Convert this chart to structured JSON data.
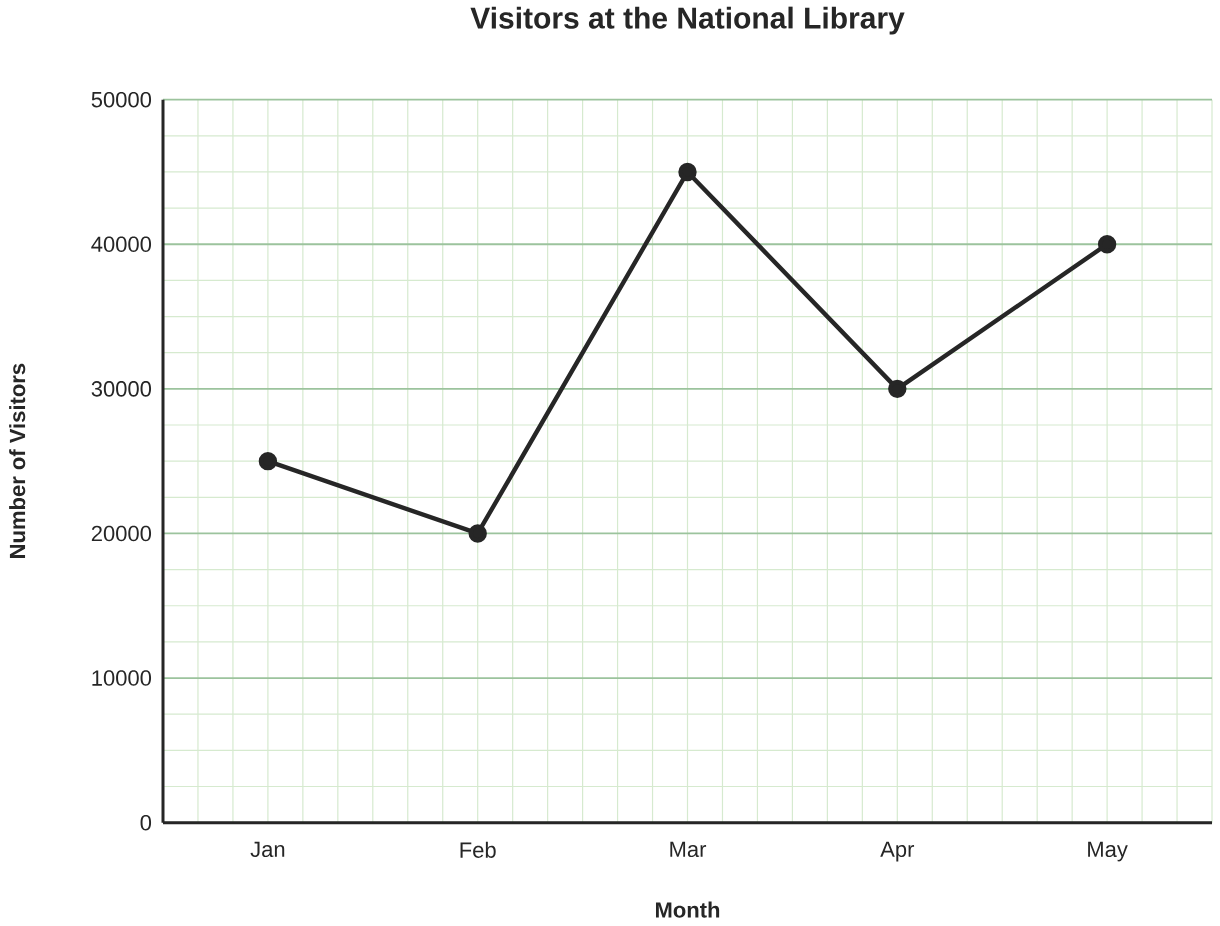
{
  "chart_data": {
    "type": "line",
    "title": "Visitors at the National Library",
    "xlabel": "Month",
    "ylabel": "Number of Visitors",
    "categories": [
      "Jan",
      "Feb",
      "Mar",
      "Apr",
      "May"
    ],
    "values": [
      25000,
      20000,
      45000,
      30000,
      40000
    ],
    "color": "#262626",
    "marker": "circle",
    "line_style": "solid",
    "ylim": [
      0,
      50000
    ],
    "yticks": [
      0,
      10000,
      20000,
      30000,
      40000,
      50000
    ],
    "grid": true
  }
}
